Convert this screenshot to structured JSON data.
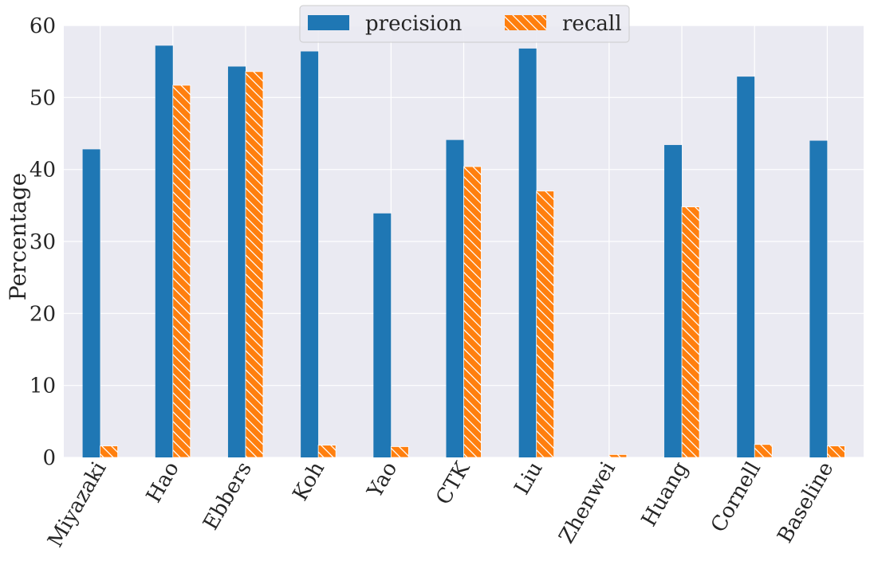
{
  "chart_data": {
    "type": "bar",
    "title": "",
    "xlabel": "",
    "ylabel": "Percentage",
    "ylim": [
      0,
      60
    ],
    "yticks": [
      0,
      10,
      20,
      30,
      40,
      50,
      60
    ],
    "grid": true,
    "legend": "upper-center",
    "categories": [
      "Miyazaki",
      "Hao",
      "Ebbers",
      "Koh",
      "Yao",
      "CTK",
      "Liu",
      "Zhenwei",
      "Huang",
      "Cornell",
      "Baseline"
    ],
    "series": [
      {
        "name": "precision",
        "color": "#1f77b4",
        "hatch": false,
        "values": [
          42.8,
          57.2,
          54.3,
          56.4,
          33.9,
          44.1,
          56.8,
          0.0,
          43.4,
          52.9,
          44.0
        ]
      },
      {
        "name": "recall",
        "color": "#ff7f0e",
        "hatch": true,
        "values": [
          1.6,
          51.7,
          53.6,
          1.7,
          1.5,
          40.4,
          37.0,
          0.4,
          34.8,
          1.8,
          1.6
        ]
      }
    ]
  }
}
